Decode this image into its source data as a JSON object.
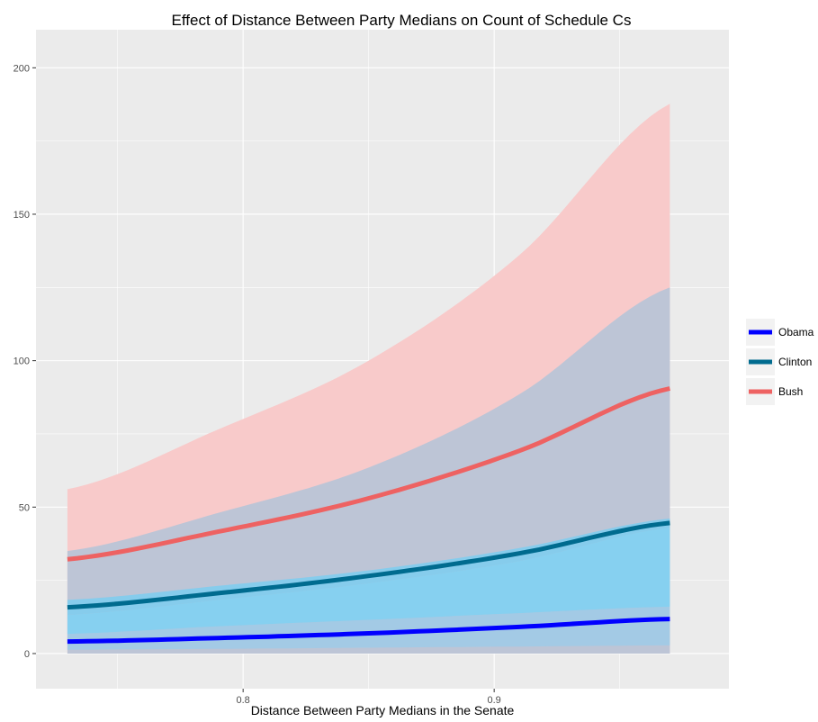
{
  "chart_data": {
    "type": "line",
    "title": "Effect of Distance Between Party Medians on Count of Schedule Cs",
    "xlabel": "Distance Between Party Medians in the Senate",
    "ylabel": "",
    "xlim": [
      0.7175,
      0.9935
    ],
    "ylim": [
      -12,
      213
    ],
    "x_ticks": [
      0.8,
      0.9
    ],
    "x_tick_labels": [
      "0.8",
      "0.9"
    ],
    "y_ticks": [
      0,
      50,
      100,
      150,
      200
    ],
    "y_tick_labels": [
      "0",
      "50",
      "100",
      "150",
      "200"
    ],
    "grid": true,
    "legend_position": "right",
    "x": [
      0.73,
      0.79,
      0.85,
      0.91,
      0.97
    ],
    "series": [
      {
        "name": "Obama",
        "color": "#0000ff",
        "ribbon_color": "#8ecdf2",
        "values": [
          4.1,
          5.3,
          6.9,
          9.1,
          11.8
        ],
        "lower": [
          1.3,
          1.6,
          2.0,
          2.4,
          2.8
        ],
        "upper": [
          6.7,
          9.3,
          11.5,
          13.8,
          16.0
        ]
      },
      {
        "name": "Clinton",
        "color": "#006b8f",
        "ribbon_color": "#6fcff5",
        "values": [
          15.8,
          20.6,
          26.5,
          34.2,
          44.6
        ],
        "lower": [
          13.2,
          18.3,
          24.0,
          31.6,
          43.0
        ],
        "upper": [
          18.3,
          23.1,
          28.4,
          36.0,
          46.1
        ]
      },
      {
        "name": "Bush",
        "color": "#ee6262",
        "ribbon_color": "#f8caca",
        "values": [
          32.2,
          41.6,
          53.0,
          69.2,
          90.5
        ],
        "lower": [
          0,
          0,
          0,
          0,
          0
        ],
        "upper": [
          56.1,
          76.5,
          100.0,
          136.0,
          187.7
        ],
        "inner_lower": [
          0,
          0,
          0,
          0,
          0
        ],
        "inner_upper": [
          35.0,
          48.0,
          63.5,
          88.5,
          125.0
        ]
      }
    ]
  }
}
